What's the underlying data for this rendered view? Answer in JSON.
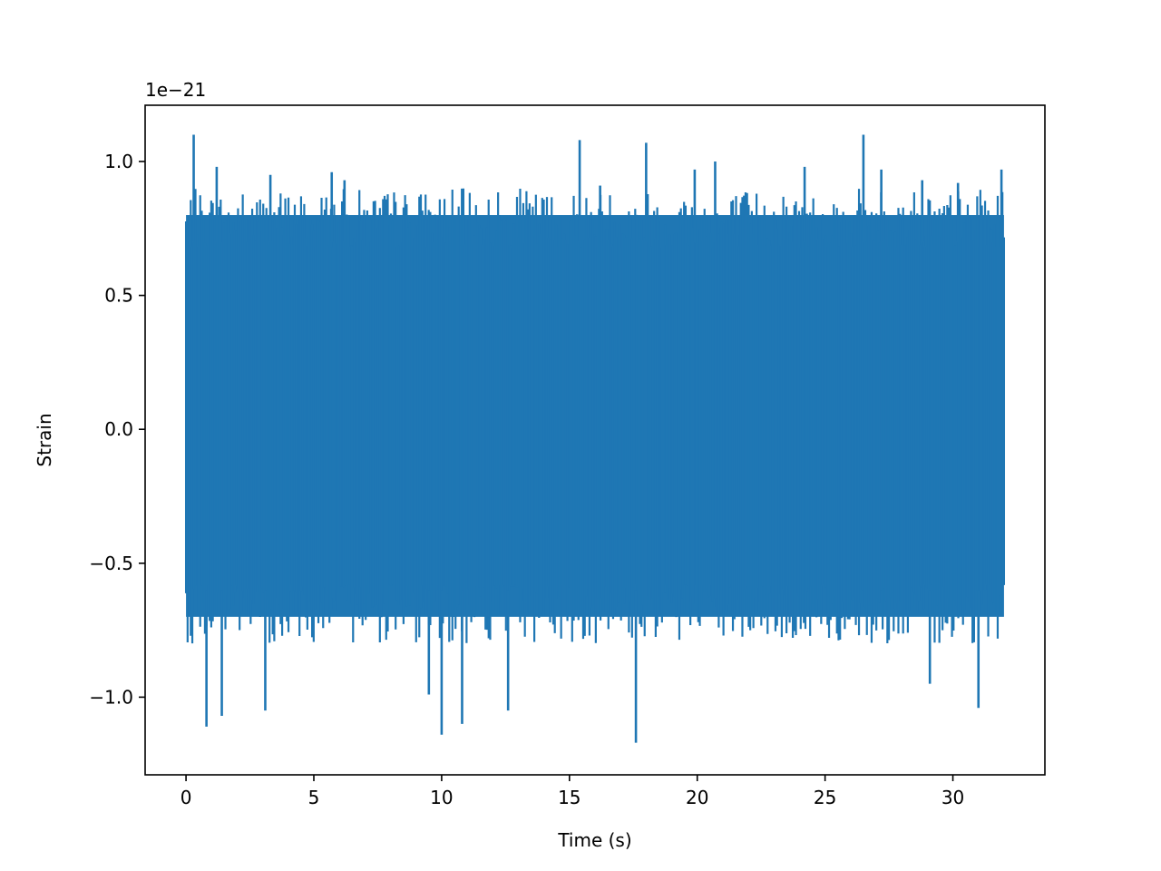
{
  "chart_data": {
    "type": "line",
    "title": "",
    "xlabel": "Time (s)",
    "ylabel": "Strain",
    "offset_text": "1e−21",
    "xlim": [
      -1.6,
      33.6
    ],
    "ylim": [
      -1.29,
      1.21
    ],
    "xticks": [
      {
        "value": 0,
        "label": "0"
      },
      {
        "value": 5,
        "label": "5"
      },
      {
        "value": 10,
        "label": "10"
      },
      {
        "value": 15,
        "label": "15"
      },
      {
        "value": 20,
        "label": "20"
      },
      {
        "value": 25,
        "label": "25"
      },
      {
        "value": 30,
        "label": "30"
      }
    ],
    "yticks": [
      {
        "value": -1.0,
        "label": "−1.0"
      },
      {
        "value": -0.5,
        "label": "−0.5"
      },
      {
        "value": 0.0,
        "label": "0.0"
      },
      {
        "value": 0.5,
        "label": "0.5"
      },
      {
        "value": 1.0,
        "label": "1.0"
      }
    ],
    "grid": false,
    "series": [
      {
        "color": "#1f77b4",
        "sample_duration_s": 32,
        "band_upper": 0.8,
        "band_lower": -0.7,
        "x": [
          0.3,
          1.2,
          0.8,
          1.4,
          3.1,
          3.3,
          5.7,
          6.2,
          9.5,
          10.0,
          10.8,
          12.6,
          15.4,
          16.2,
          17.6,
          18.0,
          19.9,
          20.7,
          24.2,
          26.5,
          27.2,
          28.8,
          29.1,
          30.2,
          31.0,
          31.9
        ],
        "y": [
          1.1,
          0.98,
          -1.11,
          -1.07,
          -1.05,
          0.95,
          0.96,
          0.93,
          -0.99,
          -1.14,
          -1.1,
          -1.05,
          1.08,
          0.91,
          -1.17,
          1.07,
          0.97,
          1.0,
          0.98,
          1.1,
          0.97,
          0.93,
          -0.95,
          0.92,
          -1.04,
          0.97
        ]
      }
    ]
  }
}
